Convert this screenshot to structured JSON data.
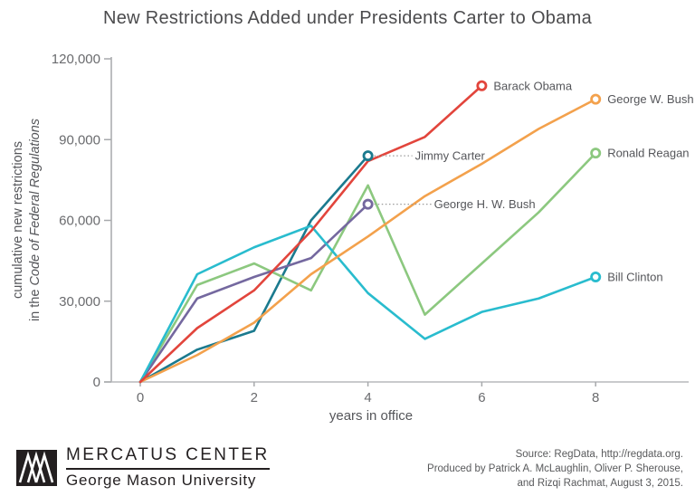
{
  "title": "New Restrictions Added under Presidents Carter to Obama",
  "chart_data": {
    "type": "line",
    "title": "New Restrictions Added under Presidents Carter to Obama",
    "xlabel": "years in office",
    "ylabel": {
      "line1": "cumulative new restrictions",
      "line2_prefix": "in the ",
      "line2_italic": "Code of Federal Regulations"
    },
    "xlim": [
      0,
      8
    ],
    "ylim": [
      0,
      120000
    ],
    "x_ticks": [
      0,
      2,
      4,
      6,
      8
    ],
    "y_ticks": [
      {
        "value": 0,
        "label": "0"
      },
      {
        "value": 30000,
        "label": "30,000"
      },
      {
        "value": 60000,
        "label": "60,000"
      },
      {
        "value": 90000,
        "label": "90,000"
      },
      {
        "value": 120000,
        "label": "120,000"
      }
    ],
    "grid": false,
    "legend_position": "direct line-end labels",
    "series": [
      {
        "name": "Jimmy Carter",
        "color": "#1b7a8e",
        "label_style": "leader",
        "leader_dx": 52,
        "x": [
          0,
          1,
          2,
          3,
          4
        ],
        "values": [
          0,
          12000,
          19000,
          60000,
          84000
        ]
      },
      {
        "name": "Ronald Reagan",
        "color": "#8cc87f",
        "label_style": "end",
        "x": [
          0,
          1,
          2,
          3,
          4,
          5,
          6,
          7,
          8
        ],
        "values": [
          0,
          36000,
          44000,
          34000,
          73000,
          25000,
          44000,
          63000,
          85000
        ]
      },
      {
        "name": "George H. W. Bush",
        "color": "#74689f",
        "label_style": "leader",
        "leader_dx": 73,
        "x": [
          0,
          1,
          2,
          3,
          4
        ],
        "values": [
          0,
          31000,
          39000,
          46000,
          66000
        ]
      },
      {
        "name": "Bill Clinton",
        "color": "#29bcce",
        "label_style": "end",
        "x": [
          0,
          1,
          2,
          3,
          4,
          5,
          6,
          7,
          8
        ],
        "values": [
          0,
          40000,
          50000,
          58000,
          33000,
          16000,
          26000,
          31000,
          39000
        ]
      },
      {
        "name": "George W. Bush",
        "color": "#f3a14c",
        "label_style": "end",
        "x": [
          0,
          1,
          2,
          3,
          4,
          5,
          6,
          7,
          8
        ],
        "values": [
          0,
          10000,
          22000,
          40000,
          54000,
          69000,
          81000,
          94000,
          105000
        ]
      },
      {
        "name": "Barack Obama",
        "color": "#e2453c",
        "label_style": "end",
        "x": [
          0,
          1,
          2,
          3,
          4,
          5,
          6
        ],
        "values": [
          0,
          20000,
          34000,
          56000,
          82000,
          91000,
          110000
        ]
      }
    ]
  },
  "footer": {
    "logo_org": "MERCATUS CENTER",
    "logo_university": "George Mason University",
    "source_line1": "Source: RegData, http://regdata.org.",
    "source_line2": "Produced by Patrick A. McLaughlin, Oliver P. Sherouse,",
    "source_line3": "and Rizqi Rachmat, August 3, 2015."
  }
}
